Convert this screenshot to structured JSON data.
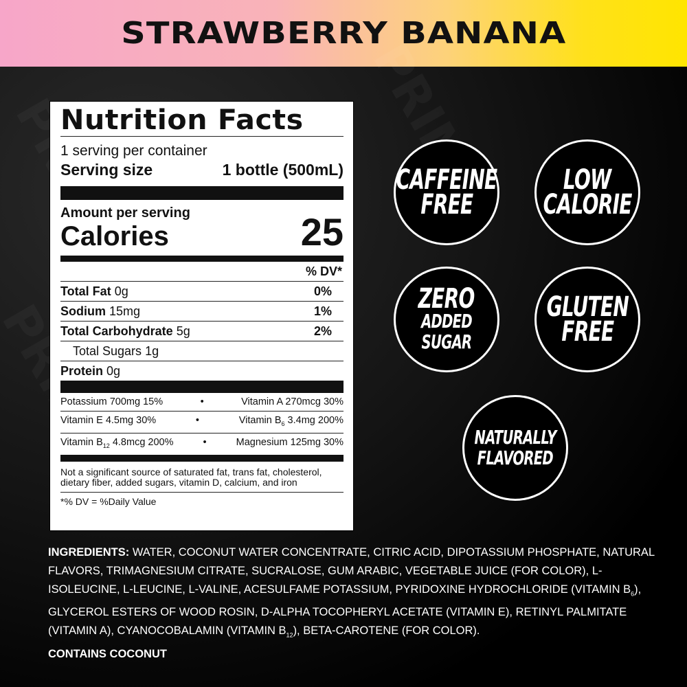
{
  "header": {
    "title": "STRAWBERRY BANANA",
    "gradient_colors": [
      "#f7a6c9",
      "#ffe500"
    ]
  },
  "watermark": "PRIME",
  "nutrition": {
    "title": "Nutrition Facts",
    "servings_per_container": "1 serving per container",
    "serving_size_label": "Serving size",
    "serving_size_value": "1 bottle (500mL)",
    "amount_per_serving": "Amount per serving",
    "calories_label": "Calories",
    "calories_value": "25",
    "dv_header": "% DV*",
    "nutrients": [
      {
        "name": "Total Fat",
        "amount": "0g",
        "dv": "0%"
      },
      {
        "name": "Sodium",
        "amount": "15mg",
        "dv": "1%"
      },
      {
        "name": "Total Carbohydrate",
        "amount": "5g",
        "dv": "2%"
      },
      {
        "name": "Total Sugars",
        "amount": "1g",
        "dv": ""
      },
      {
        "name": "Protein",
        "amount": "0g",
        "dv": ""
      }
    ],
    "vitamins": [
      {
        "left": "Potassium 700mg 15%",
        "right": "Vitamin A 270mcg 30%"
      },
      {
        "left_pre": "Vitamin E 4.5mg 30%",
        "right_pre": "Vitamin B",
        "right_sub": "6",
        "right_post": " 3.4mg 200%"
      },
      {
        "left_pre": "Vitamin B",
        "left_sub": "12",
        "left_post": " 4.8mcg 200%",
        "right": "Magnesium 125mg 30%"
      }
    ],
    "separator": "•",
    "footnote": "Not a significant source of saturated fat, trans fat, cholesterol, dietary fiber, added sugars, vitamin D, calcium, and iron",
    "dv_note": "*% DV = %Daily Value"
  },
  "badges": [
    {
      "line1": "CAFFEINE",
      "line2": "FREE"
    },
    {
      "line1": "LOW",
      "line2": "CALORIE"
    },
    {
      "line1": "ZERO",
      "line2": "ADDED SUGAR"
    },
    {
      "line1": "GLUTEN",
      "line2": "FREE"
    },
    {
      "line1": "NATURALLY",
      "line2": "FLAVORED"
    }
  ],
  "ingredients": {
    "label": "INGREDIENTS:",
    "text_1": " WATER, COCONUT WATER CONCENTRATE, CITRIC ACID, DIPOTASSIUM PHOSPHATE, NATURAL FLAVORS, TRIMAGNESIUM CITRATE, SUCRALOSE, GUM ARABIC, VEGETABLE JUICE (FOR COLOR), L-ISOLEUCINE, L-LEUCINE, L-VALINE, ACESULFAME POTASSIUM, PYRIDOXINE HYDROCHLORIDE (VITAMIN B",
    "sub_1": "6",
    "text_2": "), GLYCEROL ESTERS OF WOOD ROSIN, D-ALPHA TOCOPHERYL ACETATE (VITAMIN E), RETINYL PALMITATE (VITAMIN A), CYANOCOBALAMIN (VITAMIN B",
    "sub_2": "12",
    "text_3": "), BETA-CAROTENE (FOR COLOR).",
    "contains": "CONTAINS COCONUT"
  }
}
